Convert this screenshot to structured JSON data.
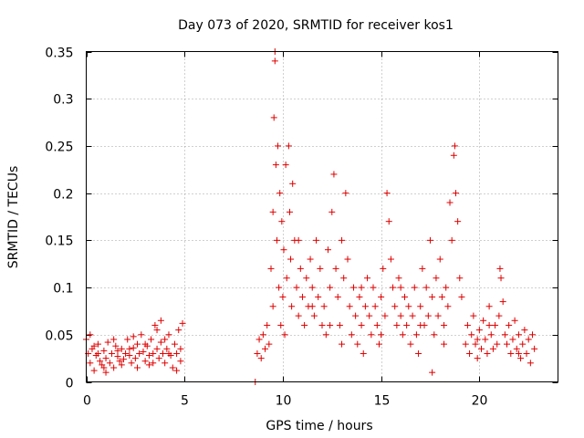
{
  "chart_data": {
    "type": "scatter",
    "title": "Day 073 of 2020, SRMTID for receiver kos1",
    "xlabel": "GPS time / hours",
    "ylabel": "SRMTID / TECUs",
    "xlim": [
      0,
      24
    ],
    "ylim": [
      0,
      0.35
    ],
    "x_ticks": [
      0,
      5,
      10,
      15,
      20
    ],
    "x_tick_labels": [
      "0",
      "5",
      "10",
      "15",
      "20"
    ],
    "y_ticks": [
      0,
      0.05,
      0.1,
      0.15,
      0.2,
      0.25,
      0.3,
      0.35
    ],
    "y_tick_labels": [
      "0",
      "0.05",
      "0.1",
      "0.15",
      "0.2",
      "0.25",
      "0.3",
      "0.35"
    ],
    "grid": true,
    "marker": "plus",
    "color": "#e00000",
    "series": [
      {
        "name": "SRMTID",
        "points": [
          [
            0.0,
            0.045
          ],
          [
            0.1,
            0.03
          ],
          [
            0.2,
            0.02
          ],
          [
            0.3,
            0.035
          ],
          [
            0.4,
            0.012
          ],
          [
            0.5,
            0.028
          ],
          [
            0.6,
            0.04
          ],
          [
            0.7,
            0.022
          ],
          [
            0.8,
            0.018
          ],
          [
            0.9,
            0.033
          ],
          [
            1.0,
            0.025
          ],
          [
            1.1,
            0.042
          ],
          [
            1.2,
            0.02
          ],
          [
            1.3,
            0.03
          ],
          [
            1.4,
            0.015
          ],
          [
            1.5,
            0.038
          ],
          [
            1.6,
            0.027
          ],
          [
            1.7,
            0.022
          ],
          [
            1.8,
            0.035
          ],
          [
            1.9,
            0.024
          ],
          [
            2.0,
            0.03
          ],
          [
            2.1,
            0.045
          ],
          [
            2.2,
            0.028
          ],
          [
            2.3,
            0.02
          ],
          [
            2.4,
            0.036
          ],
          [
            2.5,
            0.025
          ],
          [
            2.6,
            0.04
          ],
          [
            2.7,
            0.03
          ],
          [
            2.8,
            0.05
          ],
          [
            2.9,
            0.032
          ],
          [
            3.0,
            0.022
          ],
          [
            3.1,
            0.038
          ],
          [
            3.2,
            0.028
          ],
          [
            3.3,
            0.045
          ],
          [
            3.4,
            0.03
          ],
          [
            3.5,
            0.06
          ],
          [
            3.6,
            0.035
          ],
          [
            3.7,
            0.025
          ],
          [
            3.8,
            0.042
          ],
          [
            3.9,
            0.03
          ],
          [
            4.0,
            0.02
          ],
          [
            4.1,
            0.035
          ],
          [
            4.2,
            0.05
          ],
          [
            4.3,
            0.028
          ],
          [
            4.4,
            0.015
          ],
          [
            4.5,
            0.04
          ],
          [
            4.6,
            0.03
          ],
          [
            4.7,
            0.055
          ],
          [
            4.8,
            0.035
          ],
          [
            4.9,
            0.062
          ],
          [
            0.2,
            0.05
          ],
          [
            0.6,
            0.03
          ],
          [
            1.0,
            0.01
          ],
          [
            1.4,
            0.045
          ],
          [
            1.8,
            0.018
          ],
          [
            2.2,
            0.035
          ],
          [
            2.6,
            0.015
          ],
          [
            3.0,
            0.04
          ],
          [
            3.4,
            0.02
          ],
          [
            3.8,
            0.065
          ],
          [
            4.2,
            0.03
          ],
          [
            4.6,
            0.012
          ],
          [
            0.4,
            0.038
          ],
          [
            0.9,
            0.015
          ],
          [
            1.6,
            0.033
          ],
          [
            2.4,
            0.048
          ],
          [
            3.2,
            0.018
          ],
          [
            4.0,
            0.045
          ],
          [
            4.8,
            0.022
          ],
          [
            3.6,
            0.055
          ],
          [
            8.6,
            0.0
          ],
          [
            8.7,
            0.03
          ],
          [
            8.8,
            0.045
          ],
          [
            8.9,
            0.025
          ],
          [
            9.0,
            0.05
          ],
          [
            9.1,
            0.035
          ],
          [
            9.2,
            0.06
          ],
          [
            9.3,
            0.04
          ],
          [
            9.4,
            0.12
          ],
          [
            9.5,
            0.18
          ],
          [
            9.5,
            0.08
          ],
          [
            9.55,
            0.28
          ],
          [
            9.6,
            0.34
          ],
          [
            9.6,
            0.35
          ],
          [
            9.65,
            0.23
          ],
          [
            9.7,
            0.15
          ],
          [
            9.75,
            0.25
          ],
          [
            9.8,
            0.1
          ],
          [
            9.85,
            0.2
          ],
          [
            9.9,
            0.06
          ],
          [
            9.95,
            0.17
          ],
          [
            10.0,
            0.09
          ],
          [
            10.05,
            0.14
          ],
          [
            10.1,
            0.05
          ],
          [
            10.15,
            0.23
          ],
          [
            10.2,
            0.11
          ],
          [
            10.3,
            0.25
          ],
          [
            10.35,
            0.18
          ],
          [
            10.4,
            0.13
          ],
          [
            10.45,
            0.08
          ],
          [
            10.5,
            0.21
          ],
          [
            10.6,
            0.15
          ],
          [
            10.7,
            0.1
          ],
          [
            10.8,
            0.07
          ],
          [
            10.9,
            0.12
          ],
          [
            11.0,
            0.09
          ],
          [
            11.1,
            0.06
          ],
          [
            11.2,
            0.11
          ],
          [
            11.3,
            0.08
          ],
          [
            11.4,
            0.13
          ],
          [
            11.5,
            0.1
          ],
          [
            11.6,
            0.07
          ],
          [
            11.7,
            0.15
          ],
          [
            11.8,
            0.09
          ],
          [
            11.9,
            0.12
          ],
          [
            12.0,
            0.06
          ],
          [
            12.1,
            0.08
          ],
          [
            12.2,
            0.05
          ],
          [
            12.3,
            0.14
          ],
          [
            12.4,
            0.1
          ],
          [
            12.5,
            0.18
          ],
          [
            12.6,
            0.22
          ],
          [
            12.7,
            0.12
          ],
          [
            12.8,
            0.09
          ],
          [
            12.9,
            0.06
          ],
          [
            13.0,
            0.15
          ],
          [
            13.1,
            0.11
          ],
          [
            13.2,
            0.2
          ],
          [
            13.3,
            0.13
          ],
          [
            13.4,
            0.08
          ],
          [
            13.5,
            0.05
          ],
          [
            13.6,
            0.1
          ],
          [
            13.7,
            0.07
          ],
          [
            13.8,
            0.04
          ],
          [
            13.9,
            0.09
          ],
          [
            14.0,
            0.06
          ],
          [
            14.1,
            0.03
          ],
          [
            14.2,
            0.08
          ],
          [
            14.3,
            0.11
          ],
          [
            14.4,
            0.07
          ],
          [
            14.5,
            0.05
          ],
          [
            14.6,
            0.1
          ],
          [
            14.7,
            0.08
          ],
          [
            14.8,
            0.06
          ],
          [
            14.9,
            0.04
          ],
          [
            15.0,
            0.09
          ],
          [
            15.1,
            0.12
          ],
          [
            15.2,
            0.07
          ],
          [
            15.3,
            0.2
          ],
          [
            15.4,
            0.17
          ],
          [
            15.5,
            0.13
          ],
          [
            15.6,
            0.1
          ],
          [
            15.7,
            0.08
          ],
          [
            15.8,
            0.06
          ],
          [
            15.9,
            0.11
          ],
          [
            16.0,
            0.07
          ],
          [
            16.1,
            0.05
          ],
          [
            16.2,
            0.09
          ],
          [
            16.3,
            0.06
          ],
          [
            16.4,
            0.08
          ],
          [
            16.5,
            0.04
          ],
          [
            16.6,
            0.07
          ],
          [
            16.7,
            0.1
          ],
          [
            16.8,
            0.05
          ],
          [
            16.9,
            0.03
          ],
          [
            17.0,
            0.08
          ],
          [
            17.1,
            0.12
          ],
          [
            17.2,
            0.06
          ],
          [
            17.3,
            0.1
          ],
          [
            17.4,
            0.07
          ],
          [
            17.5,
            0.15
          ],
          [
            17.6,
            0.09
          ],
          [
            17.7,
            0.05
          ],
          [
            17.8,
            0.11
          ],
          [
            17.9,
            0.07
          ],
          [
            18.0,
            0.13
          ],
          [
            18.1,
            0.09
          ],
          [
            18.2,
            0.06
          ],
          [
            18.3,
            0.1
          ],
          [
            18.4,
            0.08
          ],
          [
            18.5,
            0.19
          ],
          [
            18.6,
            0.15
          ],
          [
            18.7,
            0.24
          ],
          [
            18.75,
            0.25
          ],
          [
            18.8,
            0.2
          ],
          [
            18.9,
            0.17
          ],
          [
            19.0,
            0.11
          ],
          [
            19.1,
            0.09
          ],
          [
            12.4,
            0.06
          ],
          [
            13.0,
            0.04
          ],
          [
            14.0,
            0.1
          ],
          [
            15.0,
            0.05
          ],
          [
            16.0,
            0.1
          ],
          [
            17.0,
            0.06
          ],
          [
            17.6,
            0.01
          ],
          [
            18.2,
            0.04
          ],
          [
            10.8,
            0.15
          ],
          [
            11.5,
            0.08
          ],
          [
            19.3,
            0.04
          ],
          [
            19.4,
            0.06
          ],
          [
            19.5,
            0.03
          ],
          [
            19.6,
            0.05
          ],
          [
            19.7,
            0.07
          ],
          [
            19.8,
            0.04
          ],
          [
            19.9,
            0.025
          ],
          [
            20.0,
            0.055
          ],
          [
            20.1,
            0.035
          ],
          [
            20.2,
            0.065
          ],
          [
            20.3,
            0.045
          ],
          [
            20.4,
            0.03
          ],
          [
            20.5,
            0.08
          ],
          [
            20.6,
            0.05
          ],
          [
            20.7,
            0.035
          ],
          [
            20.8,
            0.06
          ],
          [
            20.9,
            0.04
          ],
          [
            21.0,
            0.07
          ],
          [
            21.1,
            0.11
          ],
          [
            21.2,
            0.085
          ],
          [
            21.3,
            0.05
          ],
          [
            21.4,
            0.04
          ],
          [
            21.5,
            0.06
          ],
          [
            21.6,
            0.03
          ],
          [
            21.7,
            0.045
          ],
          [
            21.8,
            0.065
          ],
          [
            21.9,
            0.035
          ],
          [
            22.0,
            0.05
          ],
          [
            22.1,
            0.025
          ],
          [
            22.2,
            0.04
          ],
          [
            22.3,
            0.055
          ],
          [
            22.4,
            0.03
          ],
          [
            22.5,
            0.045
          ],
          [
            22.6,
            0.02
          ],
          [
            22.7,
            0.05
          ],
          [
            22.8,
            0.035
          ],
          [
            21.05,
            0.12
          ],
          [
            20.5,
            0.06
          ],
          [
            19.9,
            0.045
          ],
          [
            22.0,
            0.03
          ]
        ]
      }
    ]
  }
}
